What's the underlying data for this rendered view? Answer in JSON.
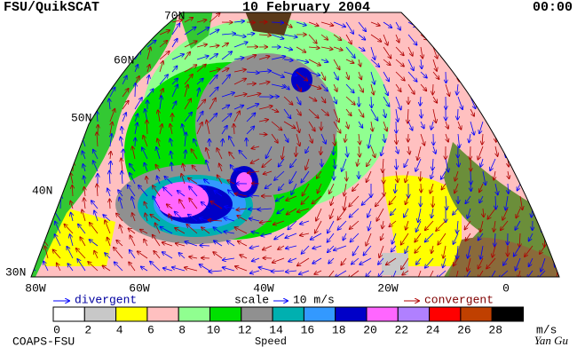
{
  "header": {
    "left": "FSU/QuikSCAT",
    "center": "10 February 2004",
    "right": "00:00"
  },
  "map": {
    "lat_labels": [
      "70N",
      "60N",
      "50N",
      "40N",
      "30N"
    ],
    "lon_labels": [
      "80W",
      "60W",
      "40W",
      "20W",
      "0"
    ]
  },
  "legend": {
    "divergent": "divergent",
    "scale": "scale",
    "scale_value": "10 m/s",
    "convergent": "convergent"
  },
  "colorbar": {
    "ticks": [
      0,
      2,
      4,
      6,
      8,
      10,
      12,
      14,
      16,
      18,
      20,
      22,
      24,
      26,
      28
    ],
    "colors": [
      "#ffffff",
      "#c8c8c8",
      "#ffff00",
      "#ffc0c0",
      "#90ff90",
      "#00e000",
      "#909090",
      "#00b0b0",
      "#3399ff",
      "#0000c8",
      "#ff66ff",
      "#b080ff",
      "#ff0000",
      "#c04000",
      "#000000"
    ],
    "unit": "m/s",
    "label": "Speed"
  },
  "footer": {
    "left": "COAPS-FSU",
    "signature": "Yan Gu"
  }
}
